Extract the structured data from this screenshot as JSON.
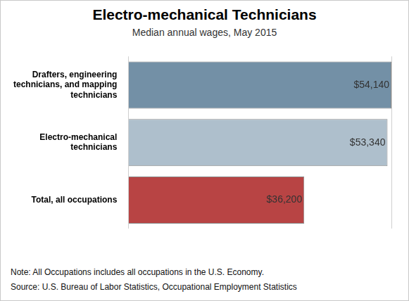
{
  "chart_data": {
    "type": "bar",
    "title": "Electro-mechanical Technicians",
    "subtitle": "Median annual wages, May 2015",
    "orientation": "horizontal",
    "categories": [
      [
        "Drafters, engineering",
        "technicians, and mapping",
        "technicians"
      ],
      [
        "Electro-mechanical",
        "technicians"
      ],
      [
        "Total, all occupations"
      ]
    ],
    "values": [
      54140,
      53340,
      36200
    ],
    "value_labels": [
      "$54,140",
      "$53,340",
      "$36,200"
    ],
    "colors": [
      "#7390a6",
      "#aebfcc",
      "#b84444"
    ],
    "data_labels": true,
    "xlim": [
      0,
      54140
    ],
    "xticks": [
      0,
      54140
    ],
    "grid": true,
    "tick_labels": "y",
    "notes": [
      "Note: All Occupations includes all occupations in the U.S. Economy.",
      "Source: U.S. Bureau of Labor Statistics, Occupational Employment Statistics"
    ]
  }
}
